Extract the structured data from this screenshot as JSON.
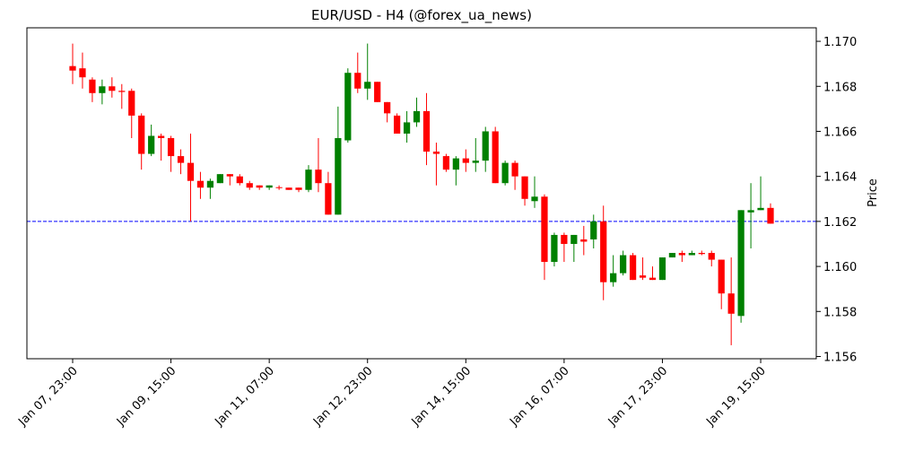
{
  "chart_data": {
    "type": "candlestick",
    "title": "EUR/USD - H4 (@forex_ua_news)",
    "y_label": "Price",
    "categories": [
      "Jan 07, 23:00",
      null,
      null,
      null,
      null,
      null,
      null,
      null,
      null,
      null,
      "Jan 09, 15:00",
      null,
      null,
      null,
      null,
      null,
      null,
      null,
      null,
      null,
      "Jan 11, 07:00",
      null,
      null,
      null,
      null,
      null,
      null,
      null,
      null,
      null,
      "Jan 12, 23:00",
      null,
      null,
      null,
      null,
      null,
      null,
      null,
      null,
      null,
      "Jan 14, 15:00",
      null,
      null,
      null,
      null,
      null,
      null,
      null,
      null,
      null,
      "Jan 16, 07:00",
      null,
      null,
      null,
      null,
      null,
      null,
      null,
      null,
      null,
      "Jan 17, 23:00",
      null,
      null,
      null,
      null,
      null,
      null,
      null,
      null,
      null,
      "Jan 19, 15:00",
      null
    ],
    "open": [
      1.1689,
      1.1688,
      1.1683,
      1.1677,
      1.168,
      1.1678,
      1.1678,
      1.1667,
      1.165,
      1.1658,
      1.1657,
      1.1649,
      1.1646,
      1.1638,
      1.1635,
      1.1637,
      1.1641,
      1.164,
      1.1637,
      1.1636,
      1.1635,
      1.16352,
      1.1635,
      1.1635,
      1.1634,
      1.1643,
      1.1637,
      1.1623,
      1.1656,
      1.1686,
      1.1679,
      1.1682,
      1.1673,
      1.1667,
      1.1659,
      1.1664,
      1.1669,
      1.1651,
      1.1649,
      1.1643,
      1.1648,
      1.1646,
      1.1647,
      1.166,
      1.1637,
      1.1646,
      1.164,
      1.1629,
      1.1631,
      1.1602,
      1.1614,
      1.161,
      1.1612,
      1.1612,
      1.162,
      1.1593,
      1.1597,
      1.1605,
      1.1596,
      1.1595,
      1.1594,
      1.1604,
      1.1606,
      1.1605,
      1.1606,
      1.1606,
      1.1603,
      1.1588,
      1.1578,
      1.1624,
      1.1625,
      1.1626
    ],
    "high": [
      1.1699,
      1.1695,
      1.1684,
      1.1683,
      1.1684,
      1.1681,
      1.1679,
      1.1668,
      1.1663,
      1.1659,
      1.1658,
      1.1652,
      1.1659,
      1.1642,
      1.1639,
      1.1641,
      1.1641,
      1.1641,
      1.1638,
      1.1636,
      1.1636,
      1.1636,
      1.1635,
      1.1635,
      1.1645,
      1.1657,
      1.1642,
      1.1671,
      1.1688,
      1.1695,
      1.1699,
      1.1682,
      1.1673,
      1.1668,
      1.1669,
      1.1675,
      1.1677,
      1.1655,
      1.165,
      1.1649,
      1.1652,
      1.1657,
      1.1662,
      1.1662,
      1.1647,
      1.1647,
      1.164,
      1.164,
      1.1632,
      1.1615,
      1.1615,
      1.1614,
      1.1618,
      1.1623,
      1.1627,
      1.1605,
      1.1607,
      1.1606,
      1.1604,
      1.16,
      1.1604,
      1.1606,
      1.1607,
      1.1607,
      1.1607,
      1.1607,
      1.1603,
      1.1604,
      1.1625,
      1.1637,
      1.164,
      1.1628
    ],
    "low": [
      1.1681,
      1.1679,
      1.1673,
      1.1672,
      1.1675,
      1.167,
      1.1657,
      1.1643,
      1.1649,
      1.1647,
      1.1642,
      1.1641,
      1.162,
      1.163,
      1.163,
      1.1637,
      1.1636,
      1.1636,
      1.1634,
      1.1634,
      1.1634,
      1.1634,
      1.1634,
      1.1633,
      1.1633,
      1.1633,
      1.1623,
      1.1623,
      1.1655,
      1.1677,
      1.1674,
      1.1673,
      1.1664,
      1.1659,
      1.1655,
      1.1662,
      1.1645,
      1.1636,
      1.1642,
      1.1636,
      1.1642,
      1.1642,
      1.1642,
      1.1637,
      1.1636,
      1.1634,
      1.1627,
      1.1626,
      1.1594,
      1.16,
      1.1602,
      1.1602,
      1.1605,
      1.1608,
      1.1585,
      1.1591,
      1.1596,
      1.1594,
      1.1594,
      1.1594,
      1.1594,
      1.1604,
      1.1602,
      1.1605,
      1.1605,
      1.16,
      1.1581,
      1.1565,
      1.1575,
      1.1608,
      1.1625,
      1.1619
    ],
    "close": [
      1.1687,
      1.1684,
      1.1677,
      1.168,
      1.1678,
      1.16775,
      1.1667,
      1.165,
      1.1658,
      1.1657,
      1.1649,
      1.1646,
      1.1638,
      1.1635,
      1.1638,
      1.1641,
      1.164,
      1.1637,
      1.1635,
      1.1635,
      1.1636,
      1.16348,
      1.1634,
      1.1634,
      1.1643,
      1.1637,
      1.1623,
      1.1657,
      1.1686,
      1.1679,
      1.1682,
      1.1673,
      1.1668,
      1.1659,
      1.1664,
      1.1669,
      1.1651,
      1.165,
      1.1643,
      1.1648,
      1.1646,
      1.1647,
      1.166,
      1.1637,
      1.1646,
      1.164,
      1.163,
      1.1631,
      1.1602,
      1.1614,
      1.161,
      1.1614,
      1.1611,
      1.162,
      1.1593,
      1.1597,
      1.1605,
      1.1594,
      1.1595,
      1.1594,
      1.1604,
      1.1606,
      1.1605,
      1.1606,
      1.16055,
      1.1603,
      1.1588,
      1.1579,
      1.1625,
      1.1625,
      1.1626,
      1.1619
    ],
    "up_color": "#008000",
    "down_color": "#ff0000",
    "ylim": [
      1.1559,
      1.1706
    ],
    "yticks": [
      1.156,
      1.158,
      {
        "value": 1.16,
        "label": "1.160"
      },
      1.162,
      1.164,
      1.166,
      1.168,
      {
        "value": 1.17,
        "label": "1.170"
      }
    ],
    "hline": {
      "value": 1.162,
      "color": "#0000ff"
    }
  }
}
